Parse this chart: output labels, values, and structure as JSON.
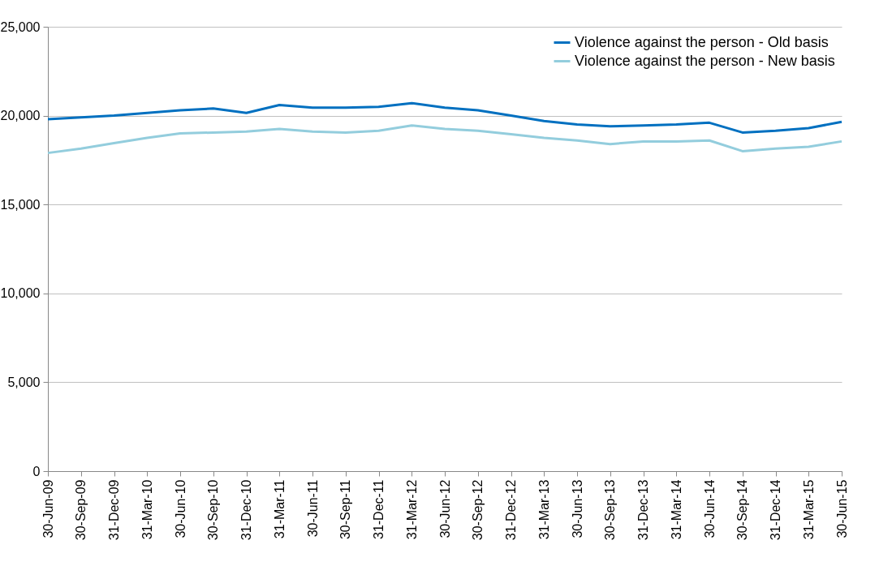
{
  "chart_data": {
    "type": "line",
    "categories": [
      "30-Jun-09",
      "30-Sep-09",
      "31-Dec-09",
      "31-Mar-10",
      "30-Jun-10",
      "30-Sep-10",
      "31-Dec-10",
      "31-Mar-11",
      "30-Jun-11",
      "30-Sep-11",
      "31-Dec-11",
      "31-Mar-12",
      "30-Jun-12",
      "30-Sep-12",
      "31-Dec-12",
      "31-Mar-13",
      "30-Jun-13",
      "30-Sep-13",
      "31-Dec-13",
      "31-Mar-14",
      "30-Jun-14",
      "30-Sep-14",
      "31-Dec-14",
      "31-Mar-15",
      "30-Jun-15"
    ],
    "series": [
      {
        "name": "Violence against the person - Old basis",
        "color": "#0070c0",
        "values": [
          19800,
          19900,
          20000,
          20150,
          20300,
          20400,
          20150,
          20600,
          20450,
          20450,
          20500,
          20700,
          20450,
          20300,
          20000,
          19700,
          19500,
          19400,
          19450,
          19500,
          19600,
          19050,
          19150,
          19300,
          19650
        ]
      },
      {
        "name": "Violence against the person - New basis",
        "color": "#93cddd",
        "values": [
          17900,
          18150,
          18450,
          18750,
          19000,
          19050,
          19100,
          19250,
          19100,
          19050,
          19150,
          19450,
          19250,
          19150,
          18950,
          18750,
          18600,
          18400,
          18550,
          18550,
          18600,
          18000,
          18150,
          18250,
          18550
        ]
      }
    ],
    "ylim": [
      0,
      25000
    ],
    "yticks": [
      0,
      {
        "value": 5000,
        "label": "5,000"
      },
      {
        "value": 10000,
        "label": "10,000"
      },
      {
        "value": 15000,
        "label": "15,000"
      },
      {
        "value": 20000,
        "label": "20,000"
      },
      {
        "value": 25000,
        "label": "25,000"
      }
    ],
    "grid": "y",
    "legend": "top right",
    "marker": "none",
    "line_style": "solid"
  }
}
